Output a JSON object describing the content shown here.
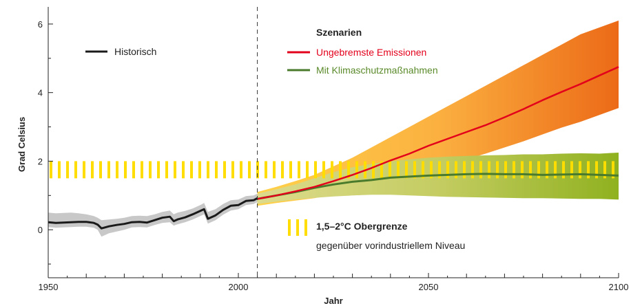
{
  "chart_data": {
    "type": "line",
    "xlabel": "Jahr",
    "ylabel": "Grad Celsius",
    "xlim": [
      1950,
      2100
    ],
    "ylim": [
      -1.4,
      6.5
    ],
    "x_ticks": [
      1950,
      2000,
      2050,
      2100
    ],
    "y_ticks": [
      0,
      2,
      4,
      6
    ],
    "grid": false,
    "scenario_start_year": 2005,
    "legend": {
      "historic_label": "Historisch",
      "scenario_heading": "Szenarien",
      "scenario_1": "Ungebremste Emissionen",
      "scenario_2": "Mit Klimaschutzmaßnahmen",
      "band_title": "1,5–2°C Obergrenze",
      "band_subtitle": "gegenüber vorindustriellem Niveau"
    },
    "target_band": {
      "low": 1.5,
      "high": 2.0
    },
    "colors": {
      "historic": "#1a1a1a",
      "historic_range": "#c8c8c8",
      "unmitigated": "#e3001b",
      "mitigated": "#4a7a2c",
      "target_band": "#ffdd00"
    },
    "series": [
      {
        "name": "Historisch",
        "x": [
          1950,
          1952,
          1954,
          1956,
          1958,
          1960,
          1962,
          1963,
          1964,
          1966,
          1968,
          1970,
          1972,
          1974,
          1976,
          1978,
          1980,
          1982,
          1983,
          1984,
          1986,
          1988,
          1990,
          1991,
          1992,
          1994,
          1996,
          1998,
          2000,
          2002,
          2004,
          2005
        ],
        "values": [
          0.22,
          0.2,
          0.21,
          0.22,
          0.23,
          0.23,
          0.2,
          0.15,
          0.04,
          0.1,
          0.14,
          0.17,
          0.22,
          0.23,
          0.21,
          0.28,
          0.35,
          0.38,
          0.25,
          0.3,
          0.36,
          0.45,
          0.55,
          0.6,
          0.32,
          0.42,
          0.58,
          0.7,
          0.72,
          0.84,
          0.86,
          0.92
        ],
        "low": [
          0.08,
          0.06,
          0.07,
          0.08,
          0.09,
          0.09,
          0.06,
          0.0,
          -0.2,
          -0.1,
          -0.05,
          0.0,
          0.07,
          0.08,
          0.07,
          0.14,
          0.2,
          0.22,
          0.12,
          0.16,
          0.22,
          0.3,
          0.4,
          0.45,
          0.18,
          0.28,
          0.44,
          0.56,
          0.6,
          0.72,
          0.75,
          0.8
        ],
        "high": [
          0.5,
          0.48,
          0.49,
          0.5,
          0.48,
          0.45,
          0.4,
          0.35,
          0.28,
          0.3,
          0.32,
          0.35,
          0.4,
          0.41,
          0.4,
          0.45,
          0.52,
          0.56,
          0.45,
          0.5,
          0.55,
          0.62,
          0.72,
          0.78,
          0.52,
          0.6,
          0.75,
          0.86,
          0.88,
          0.98,
          1.0,
          1.05
        ]
      },
      {
        "name": "Ungebremste Emissionen",
        "x": [
          2005,
          2010,
          2015,
          2020,
          2025,
          2030,
          2035,
          2040,
          2045,
          2050,
          2055,
          2060,
          2065,
          2070,
          2075,
          2080,
          2085,
          2090,
          2095,
          2100
        ],
        "values": [
          0.9,
          1.0,
          1.12,
          1.25,
          1.42,
          1.6,
          1.8,
          2.02,
          2.22,
          2.45,
          2.65,
          2.85,
          3.05,
          3.28,
          3.52,
          3.78,
          4.02,
          4.25,
          4.5,
          4.75
        ],
        "low": [
          0.7,
          0.78,
          0.85,
          0.92,
          1.02,
          1.15,
          1.3,
          1.45,
          1.6,
          1.75,
          1.9,
          2.05,
          2.22,
          2.4,
          2.58,
          2.78,
          2.98,
          3.15,
          3.35,
          3.55
        ],
        "high": [
          1.1,
          1.25,
          1.42,
          1.6,
          1.85,
          2.1,
          2.4,
          2.7,
          3.0,
          3.3,
          3.6,
          3.9,
          4.2,
          4.5,
          4.8,
          5.1,
          5.4,
          5.7,
          5.9,
          6.1
        ]
      },
      {
        "name": "Mit Klimaschutzmaßnahmen",
        "x": [
          2005,
          2010,
          2015,
          2020,
          2025,
          2030,
          2035,
          2040,
          2045,
          2050,
          2055,
          2060,
          2065,
          2070,
          2075,
          2080,
          2085,
          2090,
          2095,
          2100
        ],
        "values": [
          0.9,
          1.0,
          1.1,
          1.22,
          1.32,
          1.4,
          1.45,
          1.52,
          1.55,
          1.58,
          1.6,
          1.62,
          1.63,
          1.62,
          1.62,
          1.6,
          1.61,
          1.62,
          1.6,
          1.58
        ],
        "low": [
          0.75,
          0.82,
          0.88,
          0.93,
          0.97,
          1.0,
          1.02,
          1.02,
          1.0,
          0.98,
          0.96,
          0.95,
          0.94,
          0.93,
          0.92,
          0.92,
          0.91,
          0.9,
          0.9,
          0.88
        ],
        "high": [
          1.05,
          1.18,
          1.32,
          1.5,
          1.68,
          1.82,
          1.92,
          2.0,
          2.05,
          2.1,
          2.13,
          2.15,
          2.17,
          2.18,
          2.2,
          2.2,
          2.22,
          2.23,
          2.22,
          2.25
        ]
      }
    ]
  }
}
